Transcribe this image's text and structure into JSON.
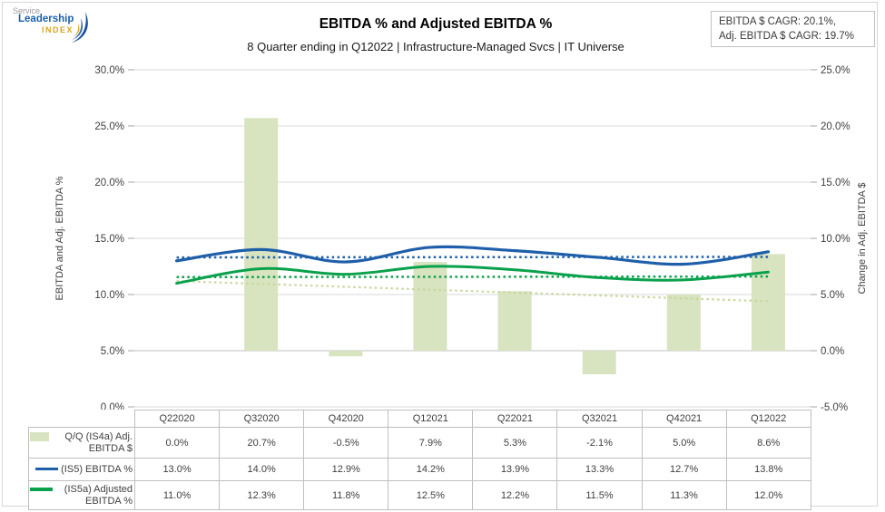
{
  "logo": {
    "service": "Service",
    "leadership": "Leadership",
    "index": "INDEX"
  },
  "header": {
    "title": "EBITDA % and Adjusted EBITDA %",
    "subtitle": "8 Quarter ending in Q12022 | Infrastructure-Managed Svcs | IT Universe",
    "cagr_line1": "EBITDA $ CAGR: 20.1%,",
    "cagr_line2": "Adj. EBITDA $ CAGR: 19.7%"
  },
  "chart_data": {
    "type": "combo",
    "categories": [
      "Q22020",
      "Q32020",
      "Q42020",
      "Q12021",
      "Q22021",
      "Q32021",
      "Q42021",
      "Q12022"
    ],
    "series": [
      {
        "name": "Q/Q (IS4a) Adj. EBITDA $",
        "type": "bar",
        "axis": "right",
        "color": "#d8e3c0",
        "values": [
          0.0,
          20.7,
          -0.5,
          7.9,
          5.3,
          -2.1,
          5.0,
          8.6
        ]
      },
      {
        "name": "(IS5) EBITDA %",
        "type": "line",
        "axis": "left",
        "color": "#1f5fa9",
        "values": [
          13.0,
          14.0,
          12.9,
          14.2,
          13.9,
          13.3,
          12.7,
          13.8
        ]
      },
      {
        "name": "(IS5a) Adjusted EBITDA %",
        "type": "line",
        "axis": "left",
        "color": "#0aa14c",
        "values": [
          11.0,
          12.3,
          11.8,
          12.5,
          12.2,
          11.5,
          11.3,
          12.0
        ]
      }
    ],
    "trendlines": [
      {
        "name": "ebitda-pct-reference",
        "color": "#1f5fa9",
        "axis": "left",
        "start": 13.3,
        "end": 13.35,
        "width": 2.5
      },
      {
        "name": "adj-ebitda-pct-reference",
        "color": "#0aa14c",
        "axis": "left",
        "start": 11.55,
        "end": 11.6,
        "width": 2.5
      },
      {
        "name": "adj-ebitda-dollar-trend",
        "color": "#c8d79e",
        "axis": "right",
        "start": 6.2,
        "end": 4.4,
        "width": 2.2
      }
    ],
    "left_axis": {
      "title": "EBITDA and Adj. EBITDA %",
      "min": 0,
      "max": 30,
      "ticks": [
        "30.0%",
        "25.0%",
        "20.0%",
        "15.0%",
        "10.0%",
        "5.0%",
        "0.0%"
      ]
    },
    "right_axis": {
      "title": "Change in Adj. EBITDA $",
      "min": -5,
      "max": 25,
      "ticks": [
        "25.0%",
        "20.0%",
        "15.0%",
        "10.0%",
        "5.0%",
        "0.0%",
        "-5.0%"
      ]
    },
    "grid": true,
    "legend_position": "table-left"
  },
  "table": {
    "columns": [
      "Q22020",
      "Q32020",
      "Q42020",
      "Q12021",
      "Q22021",
      "Q32021",
      "Q42021",
      "Q12022"
    ],
    "rows": [
      {
        "label": "Q/Q (IS4a) Adj. EBITDA $",
        "swatch": "bar",
        "swatch_color": "#d8e3c0",
        "values": [
          "0.0%",
          "20.7%",
          "-0.5%",
          "7.9%",
          "5.3%",
          "-2.1%",
          "5.0%",
          "8.6%"
        ]
      },
      {
        "label": "(IS5) EBITDA %",
        "swatch": "line",
        "swatch_color": "#1f5fa9",
        "values": [
          "13.0%",
          "14.0%",
          "12.9%",
          "14.2%",
          "13.9%",
          "13.3%",
          "12.7%",
          "13.8%"
        ]
      },
      {
        "label": "(IS5a) Adjusted EBITDA %",
        "swatch": "line",
        "swatch_color": "#0aa14c",
        "values": [
          "11.0%",
          "12.3%",
          "11.8%",
          "12.5%",
          "12.2%",
          "11.5%",
          "11.3%",
          "12.0%"
        ]
      }
    ]
  }
}
